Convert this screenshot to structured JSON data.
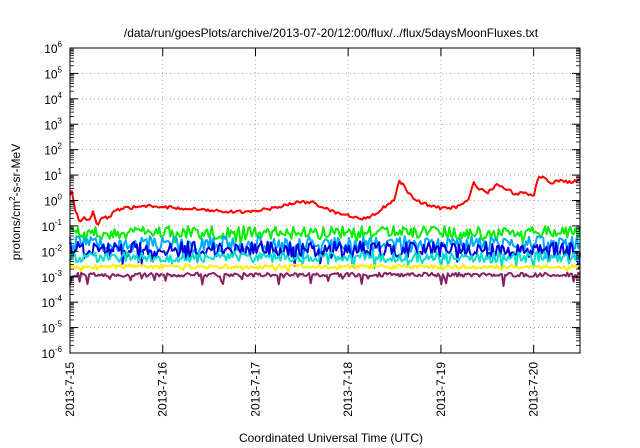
{
  "chart_data": {
    "type": "line",
    "title": "/data/run/goesPlots/archive/2013-07-20/12:00/flux/../flux/5daysMoonFluxes.txt",
    "xlabel": "Coordinated Universal Time (UTC)",
    "ylabel": {
      "pre": "protons/cm",
      "sup": "2",
      "post": "-s-sr-MeV"
    },
    "yscale": "log",
    "ylim_exp": [
      -6,
      6
    ],
    "xlim_days": [
      0,
      5.5
    ],
    "grid": true,
    "x_ticks": [
      "2013-7-15",
      "2013-7-16",
      "2013-7-17",
      "2013-7-18",
      "2013-7-19",
      "2013-7-20"
    ],
    "y_ticks": [
      {
        "base": "10",
        "exp": "6"
      },
      {
        "base": "10",
        "exp": "5"
      },
      {
        "base": "10",
        "exp": "4"
      },
      {
        "base": "10",
        "exp": "3"
      },
      {
        "base": "10",
        "exp": "2"
      },
      {
        "base": "10",
        "exp": "1"
      },
      {
        "base": "10",
        "exp": "0"
      },
      {
        "base": "10",
        "exp": "-1"
      },
      {
        "base": "10",
        "exp": "-2"
      },
      {
        "base": "10",
        "exp": "-3"
      },
      {
        "base": "10",
        "exp": "-4"
      },
      {
        "base": "10",
        "exp": "-5"
      },
      {
        "base": "10",
        "exp": "-6"
      }
    ],
    "series": [
      {
        "color": "#ff0000",
        "noise": 0.06,
        "x": [
          0,
          0.02,
          0.05,
          0.1,
          0.15,
          0.2,
          0.25,
          0.3,
          0.35,
          0.4,
          0.5,
          0.6,
          0.8,
          1.0,
          1.2,
          1.4,
          1.6,
          1.8,
          2.0,
          2.2,
          2.4,
          2.6,
          2.7,
          2.8,
          2.9,
          3.0,
          3.1,
          3.2,
          3.3,
          3.4,
          3.5,
          3.55,
          3.6,
          3.65,
          3.7,
          3.8,
          3.9,
          4.0,
          4.1,
          4.2,
          4.3,
          4.35,
          4.4,
          4.5,
          4.6,
          4.7,
          4.8,
          4.9,
          5.0,
          5.05,
          5.1,
          5.2,
          5.3,
          5.4,
          5.5
        ],
        "y": [
          1.5,
          2.5,
          0.5,
          0.15,
          0.2,
          0.15,
          0.35,
          0.1,
          0.25,
          0.2,
          0.4,
          0.5,
          0.6,
          0.55,
          0.5,
          0.45,
          0.4,
          0.35,
          0.4,
          0.5,
          0.8,
          0.9,
          0.6,
          0.4,
          0.3,
          0.25,
          0.2,
          0.2,
          0.3,
          0.6,
          1.0,
          6.0,
          4.0,
          2.0,
          1.2,
          0.8,
          0.6,
          0.5,
          0.5,
          0.6,
          1.0,
          5.0,
          3.0,
          2.0,
          4.0,
          3.0,
          1.8,
          2.0,
          1.5,
          9.0,
          8.0,
          5.0,
          6.0,
          5.0,
          7.0
        ]
      },
      {
        "color": "#00ee00",
        "base": 0.055,
        "amp": 0.25,
        "dip": 0.35
      },
      {
        "color": "#00aaff",
        "base": 0.02,
        "amp": 0.3,
        "dip": 0.55
      },
      {
        "color": "#0000dd",
        "base": 0.012,
        "amp": 0.3,
        "dip": 0.5
      },
      {
        "color": "#00ddcc",
        "base": 0.006,
        "amp": 0.2,
        "dip": 0.4
      },
      {
        "color": "#ffee00",
        "base": 0.0025,
        "amp": 0.08,
        "dip": 0.15
      },
      {
        "color": "#882266",
        "base": 0.0012,
        "amp": 0.08,
        "dip": 0.4
      }
    ]
  }
}
